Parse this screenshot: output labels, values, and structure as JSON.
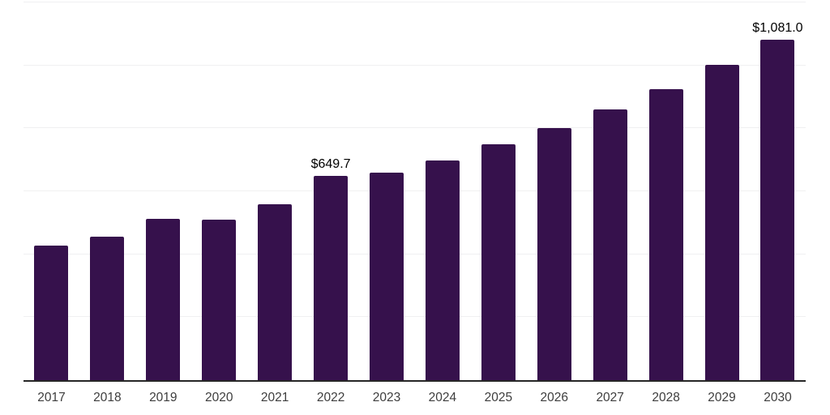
{
  "chart_data": {
    "type": "bar",
    "title": "",
    "xlabel": "",
    "ylabel": "",
    "categories": [
      "2017",
      "2018",
      "2019",
      "2020",
      "2021",
      "2022",
      "2023",
      "2024",
      "2025",
      "2026",
      "2027",
      "2028",
      "2029",
      "2030"
    ],
    "values": [
      428,
      457,
      513,
      511,
      558,
      649.7,
      660,
      699,
      750,
      802,
      861,
      925,
      1003,
      1081
    ],
    "value_labels": [
      null,
      null,
      null,
      null,
      null,
      "$649.7",
      null,
      null,
      null,
      null,
      null,
      null,
      null,
      "$1,081.0"
    ],
    "ylim": [
      0,
      1200
    ],
    "gridline_step": 200,
    "grid": true,
    "legend": false,
    "y_tick_labels_shown": false,
    "colors": {
      "bar": "#36114C",
      "axis_line": "#262626",
      "gridline": "#f0f0f1",
      "tick_label": "#3d3d3d",
      "value_label": "#000000",
      "background": "#ffffff"
    }
  }
}
